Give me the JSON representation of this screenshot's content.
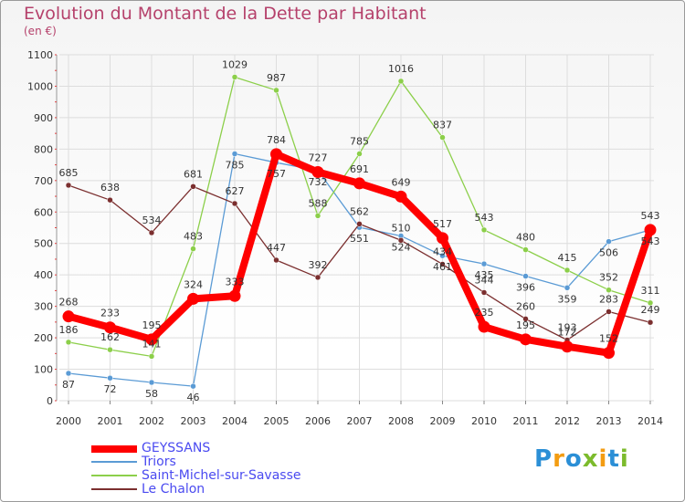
{
  "title": "Evolution du Montant de la Dette par Habitant",
  "unit": "(en €)",
  "logo_text": "Proxiti",
  "chart_data": {
    "type": "line",
    "title": "Evolution du Montant de la Dette par Habitant",
    "ylabel": "(en €)",
    "x": [
      "2000",
      "2001",
      "2002",
      "2003",
      "2004",
      "2005",
      "2006",
      "2007",
      "2008",
      "2009",
      "2010",
      "2011",
      "2012",
      "2013",
      "2014"
    ],
    "ylim": [
      0,
      1100
    ],
    "yticks": [
      0,
      100,
      200,
      300,
      400,
      500,
      600,
      700,
      800,
      900,
      1000,
      1100
    ],
    "grid": true,
    "legend_position": "bottom-left",
    "series": [
      {
        "name": "GEYSSANS",
        "color": "#ff0000",
        "values": [
          268,
          233,
          195,
          324,
          333,
          784,
          727,
          691,
          649,
          517,
          235,
          195,
          172,
          152,
          543
        ]
      },
      {
        "name": "Triors",
        "color": "#5b9bd5",
        "values": [
          87,
          72,
          58,
          46,
          785,
          757,
          732,
          551,
          524,
          461,
          435,
          396,
          359,
          506,
          543
        ]
      },
      {
        "name": "Saint-Michel-sur-Savasse",
        "color": "#8ccf4a",
        "values": [
          186,
          162,
          141,
          483,
          1029,
          987,
          588,
          785,
          1016,
          837,
          543,
          480,
          415,
          352,
          311
        ]
      },
      {
        "name": "Le Chalon",
        "color": "#7b2f2f",
        "values": [
          685,
          638,
          534,
          681,
          627,
          447,
          392,
          562,
          510,
          434,
          344,
          260,
          193,
          283,
          249
        ]
      }
    ]
  }
}
